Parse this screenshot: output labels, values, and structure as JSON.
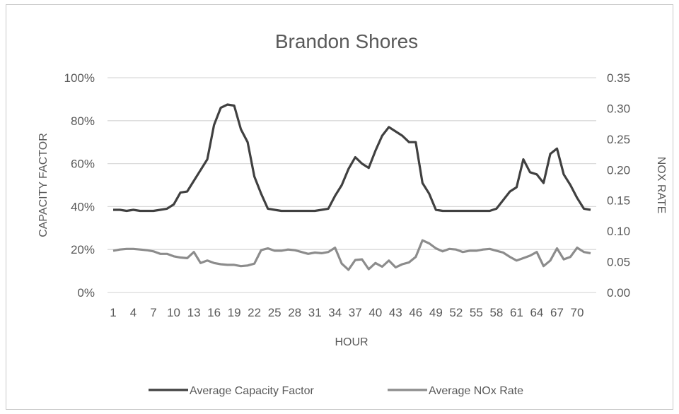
{
  "chart_data": {
    "type": "line",
    "title": "Brandon  Shores",
    "xlabel": "HOUR",
    "ylabel": "CAPACITY FACTOR",
    "y2label": "NOX RATE",
    "ylim": [
      0,
      1
    ],
    "y2lim": [
      0,
      0.35
    ],
    "yticks": [
      "0%",
      "20%",
      "40%",
      "60%",
      "80%",
      "100%"
    ],
    "y2ticks": [
      "0.00",
      "0.05",
      "0.10",
      "0.15",
      "0.20",
      "0.25",
      "0.30",
      "0.35"
    ],
    "xticks": [
      "1",
      "4",
      "7",
      "10",
      "13",
      "16",
      "19",
      "22",
      "25",
      "28",
      "31",
      "34",
      "37",
      "40",
      "43",
      "46",
      "49",
      "52",
      "55",
      "58",
      "61",
      "64",
      "67",
      "70"
    ],
    "x": [
      1,
      2,
      3,
      4,
      5,
      6,
      7,
      8,
      9,
      10,
      11,
      12,
      13,
      14,
      15,
      16,
      17,
      18,
      19,
      20,
      21,
      22,
      23,
      24,
      25,
      26,
      27,
      28,
      29,
      30,
      31,
      32,
      33,
      34,
      35,
      36,
      37,
      38,
      39,
      40,
      41,
      42,
      43,
      44,
      45,
      46,
      47,
      48,
      49,
      50,
      51,
      52,
      53,
      54,
      55,
      56,
      57,
      58,
      59,
      60,
      61,
      62,
      63,
      64,
      65,
      66,
      67,
      68,
      69,
      70,
      71,
      72
    ],
    "legend_position": "bottom",
    "grid": true,
    "series": [
      {
        "name": "Average Capacity Factor",
        "axis": "left",
        "color": "#404040",
        "values": [
          0.385,
          0.385,
          0.38,
          0.385,
          0.38,
          0.38,
          0.38,
          0.385,
          0.39,
          0.41,
          0.465,
          0.47,
          0.52,
          0.57,
          0.62,
          0.78,
          0.86,
          0.875,
          0.87,
          0.76,
          0.7,
          0.54,
          0.46,
          0.39,
          0.385,
          0.38,
          0.38,
          0.38,
          0.38,
          0.38,
          0.38,
          0.385,
          0.39,
          0.45,
          0.5,
          0.575,
          0.63,
          0.6,
          0.58,
          0.66,
          0.73,
          0.77,
          0.75,
          0.73,
          0.7,
          0.7,
          0.51,
          0.46,
          0.385,
          0.38,
          0.38,
          0.38,
          0.38,
          0.38,
          0.38,
          0.38,
          0.38,
          0.39,
          0.43,
          0.47,
          0.49,
          0.62,
          0.56,
          0.55,
          0.51,
          0.645,
          0.67,
          0.55,
          0.5,
          0.44,
          0.39,
          0.385
        ]
      },
      {
        "name": "Average NOx Rate",
        "axis": "right",
        "color": "#8c8c8c",
        "values": [
          0.068,
          0.07,
          0.071,
          0.071,
          0.07,
          0.069,
          0.067,
          0.063,
          0.063,
          0.059,
          0.057,
          0.056,
          0.066,
          0.048,
          0.052,
          0.048,
          0.046,
          0.045,
          0.045,
          0.043,
          0.044,
          0.047,
          0.069,
          0.072,
          0.068,
          0.068,
          0.07,
          0.069,
          0.066,
          0.063,
          0.065,
          0.064,
          0.066,
          0.073,
          0.047,
          0.037,
          0.053,
          0.054,
          0.038,
          0.048,
          0.042,
          0.052,
          0.041,
          0.046,
          0.049,
          0.058,
          0.085,
          0.08,
          0.072,
          0.067,
          0.071,
          0.07,
          0.066,
          0.068,
          0.068,
          0.07,
          0.071,
          0.068,
          0.065,
          0.058,
          0.052,
          0.056,
          0.06,
          0.066,
          0.043,
          0.052,
          0.072,
          0.054,
          0.058,
          0.073,
          0.066,
          0.064
        ]
      }
    ]
  }
}
